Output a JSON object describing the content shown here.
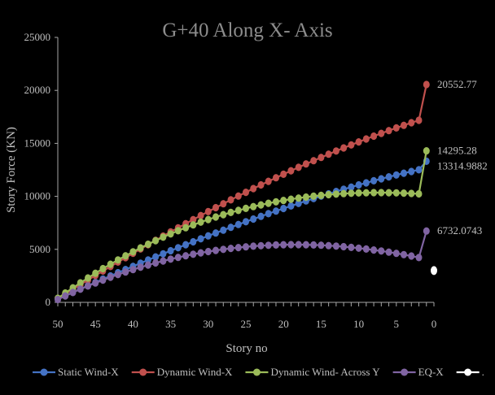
{
  "chart_data": {
    "type": "line",
    "title": "G+40 Along X- Axis",
    "xlabel": "Story no",
    "ylabel": "Story Force (KN)",
    "xlim": [
      50,
      0
    ],
    "ylim": [
      0,
      25000
    ],
    "x_ticks": [
      "50",
      "45",
      "40",
      "35",
      "30",
      "25",
      "20",
      "15",
      "10",
      "5",
      "0"
    ],
    "y_ticks": [
      "0",
      "5000",
      "10000",
      "15000",
      "20000",
      "25000"
    ],
    "x": [
      50,
      49,
      48,
      47,
      46,
      45,
      44,
      43,
      42,
      41,
      40,
      39,
      38,
      37,
      36,
      35,
      34,
      33,
      32,
      31,
      30,
      29,
      28,
      27,
      26,
      25,
      24,
      23,
      22,
      21,
      20,
      19,
      18,
      17,
      16,
      15,
      14,
      13,
      12,
      11,
      10,
      9,
      8,
      7,
      6,
      5,
      4,
      3,
      2,
      1
    ],
    "series": [
      {
        "name": "Static Wind-X",
        "color": "#4472c4",
        "end_label": "13314.9882",
        "values": [
          316,
          635,
          951,
          1262,
          1573,
          1882,
          2190,
          2495,
          2798,
          3100,
          3400,
          3698,
          3993,
          4286,
          4577,
          4866,
          5152,
          5435,
          5716,
          5995,
          6270,
          6543,
          6813,
          7080,
          7343,
          7604,
          7862,
          8116,
          8367,
          8614,
          8858,
          9098,
          9335,
          9567,
          9796,
          10021,
          10241,
          10457,
          10669,
          10876,
          11079,
          11276,
          11469,
          11656,
          11838,
          12014,
          12184,
          12348,
          12505,
          13315
        ]
      },
      {
        "name": "Dynamic Wind-X",
        "color": "#c0504d",
        "end_label": "20552.77",
        "values": [
          360,
          801,
          1240,
          1675,
          2107,
          2536,
          2962,
          3385,
          3804,
          4220,
          4633,
          5042,
          5448,
          5851,
          6250,
          6645,
          7036,
          7424,
          7808,
          8188,
          8564,
          8936,
          9304,
          9668,
          10027,
          10382,
          10733,
          11079,
          11420,
          11757,
          12089,
          12417,
          12739,
          13057,
          13369,
          13677,
          13979,
          14276,
          14568,
          14855,
          15136,
          15412,
          15682,
          15946,
          16205,
          16458,
          16705,
          16946,
          17181,
          20553
        ]
      },
      {
        "name": "Dynamic Wind- Across Y",
        "color": "#9bbb59",
        "end_label": "14295.28",
        "values": [
          380,
          882,
          1369,
          1843,
          2303,
          2749,
          3181,
          3599,
          4004,
          4395,
          4772,
          5136,
          5486,
          5823,
          6147,
          6457,
          6755,
          7039,
          7311,
          7570,
          7816,
          8050,
          8271,
          8480,
          8677,
          8862,
          9035,
          9197,
          9347,
          9486,
          9614,
          9731,
          9837,
          9933,
          10018,
          10093,
          10158,
          10213,
          10259,
          10295,
          10322,
          10340,
          10349,
          10350,
          10343,
          10328,
          10305,
          10275,
          10238,
          14295
        ]
      },
      {
        "name": "EQ-X",
        "color": "#8064a2",
        "end_label": "6732.0743",
        "values": [
          272,
          606,
          929,
          1240,
          1539,
          1827,
          2103,
          2368,
          2621,
          2863,
          3094,
          3313,
          3521,
          3718,
          3904,
          4079,
          4243,
          4396,
          4538,
          4670,
          4791,
          4901,
          5001,
          5091,
          5170,
          5239,
          5298,
          5347,
          5386,
          5415,
          5434,
          5444,
          5444,
          5435,
          5416,
          5388,
          5351,
          5305,
          5250,
          5186,
          5113,
          5032,
          4942,
          4844,
          4737,
          4622,
          4499,
          4368,
          4229,
          6732
        ]
      },
      {
        "name": ".",
        "color": "#ffffff",
        "values": [
          3000
        ],
        "x": [
          0
        ]
      }
    ],
    "legend_position": "bottom"
  }
}
